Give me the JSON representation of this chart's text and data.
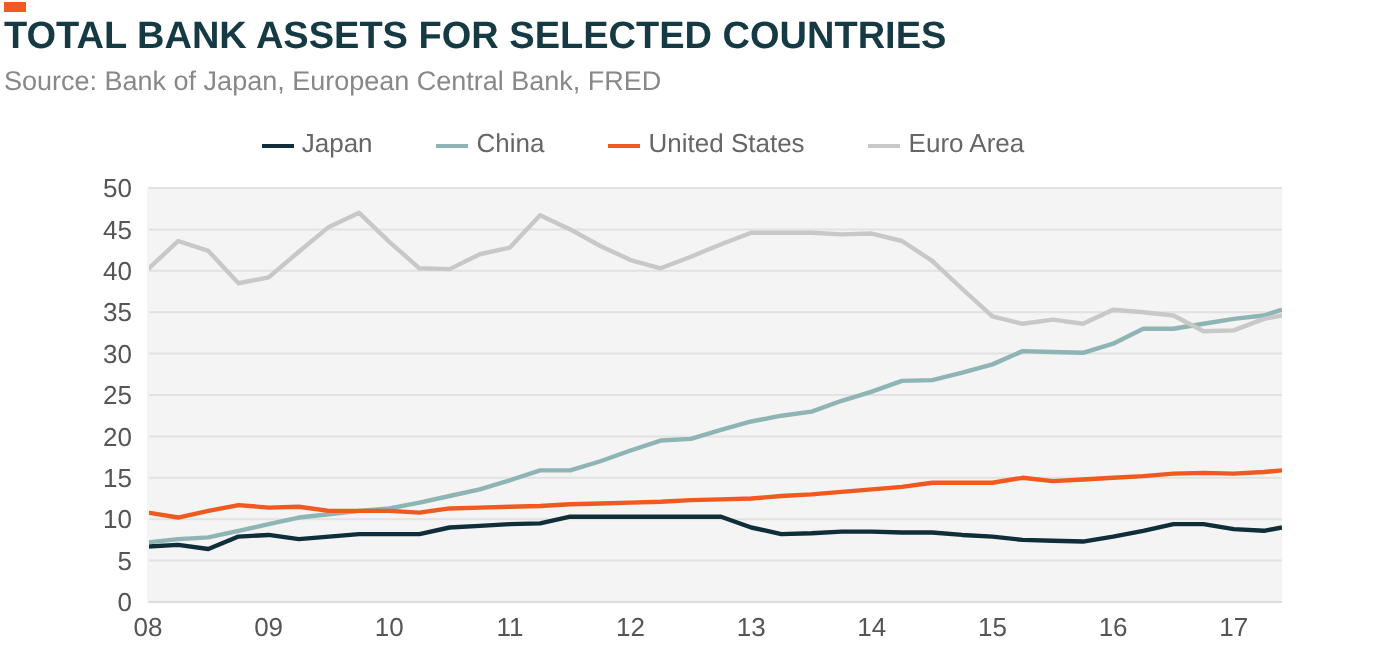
{
  "chart_data": {
    "type": "line",
    "title": "TOTAL BANK ASSETS FOR SELECTED COUNTRIES",
    "annotations": [
      "Source: Bank of Japan, European Central Bank, FRED"
    ],
    "x": [
      2008,
      2008.25,
      2008.5,
      2008.75,
      2009,
      2009.25,
      2009.5,
      2009.75,
      2010,
      2010.25,
      2010.5,
      2010.75,
      2011,
      2011.25,
      2011.5,
      2011.75,
      2012,
      2012.25,
      2012.5,
      2012.75,
      2013,
      2013.25,
      2013.5,
      2013.75,
      2014,
      2014.25,
      2014.5,
      2014.75,
      2015,
      2015.25,
      2015.5,
      2015.75,
      2016,
      2016.25,
      2016.5,
      2016.75,
      2017,
      2017.25,
      2017.4
    ],
    "series": [
      {
        "name": "Japan",
        "color": "#0f2e3a",
        "values": [
          6.7,
          6.9,
          6.4,
          7.9,
          8.1,
          7.6,
          7.9,
          8.2,
          8.2,
          8.2,
          9,
          9.2,
          9.4,
          9.5,
          10.3,
          10.3,
          10.3,
          10.3,
          10.3,
          10.3,
          9,
          8.2,
          8.3,
          8.5,
          8.5,
          8.4,
          8.4,
          8.1,
          7.9,
          7.5,
          7.4,
          7.3,
          7.9,
          8.6,
          9.4,
          9.4,
          8.8,
          8.6,
          9
        ]
      },
      {
        "name": "China",
        "color": "#8fb4b4",
        "values": [
          7.2,
          7.6,
          7.8,
          8.6,
          9.4,
          10.2,
          10.6,
          11,
          11.3,
          12,
          12.8,
          13.6,
          14.7,
          15.9,
          15.9,
          17,
          18.3,
          19.5,
          19.7,
          20.8,
          21.8,
          22.5,
          23,
          24.3,
          25.4,
          26.7,
          26.8,
          27.7,
          28.7,
          30.3,
          30.2,
          30.1,
          31.2,
          33,
          33,
          33.6,
          34.2,
          34.6,
          35.3
        ]
      },
      {
        "name": "United States",
        "color": "#f05a1e",
        "values": [
          10.8,
          10.2,
          11,
          11.7,
          11.4,
          11.5,
          11,
          11,
          11,
          10.8,
          11.3,
          11.4,
          11.5,
          11.6,
          11.8,
          11.9,
          12,
          12.1,
          12.3,
          12.4,
          12.5,
          12.8,
          13,
          13.3,
          13.6,
          13.9,
          14.4,
          14.4,
          14.4,
          15,
          14.6,
          14.8,
          15,
          15.2,
          15.5,
          15.6,
          15.5,
          15.7,
          15.9
        ]
      },
      {
        "name": "Euro Area",
        "color": "#c8c8c8",
        "values": [
          40.2,
          43.6,
          42.4,
          38.5,
          39.2,
          42.3,
          45.3,
          47,
          43.5,
          40.3,
          40.2,
          42,
          42.8,
          46.7,
          45,
          43,
          41.3,
          40.3,
          41.7,
          43.2,
          44.6,
          44.6,
          44.6,
          44.4,
          44.5,
          43.6,
          41.2,
          37.8,
          34.5,
          33.6,
          34.1,
          33.6,
          35.3,
          35,
          34.6,
          32.7,
          32.8,
          34.2,
          34.6
        ]
      }
    ],
    "xlim": [
      2008,
      2017.4
    ],
    "xticks": [
      {
        "value": 2008,
        "label": "08"
      },
      {
        "value": 2009,
        "label": "09"
      },
      {
        "value": 2010,
        "label": "10"
      },
      {
        "value": 2011,
        "label": "11"
      },
      {
        "value": 2012,
        "label": "12"
      },
      {
        "value": 2013,
        "label": "13"
      },
      {
        "value": 2014,
        "label": "14"
      },
      {
        "value": 2015,
        "label": "15"
      },
      {
        "value": 2016,
        "label": "16"
      },
      {
        "value": 2017,
        "label": "17"
      }
    ],
    "ylim": [
      0,
      50
    ],
    "yticks": [
      0,
      5,
      10,
      15,
      20,
      25,
      30,
      35,
      40,
      45,
      50
    ],
    "grid": "y",
    "legend": "top",
    "marker": "none",
    "line_style": "solid"
  }
}
